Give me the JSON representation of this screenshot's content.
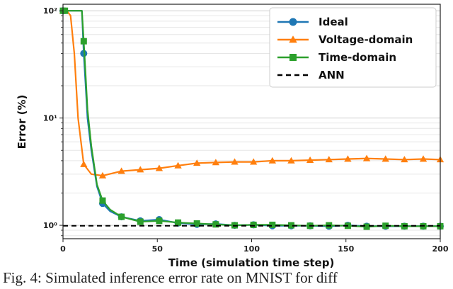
{
  "chart_data": {
    "type": "line",
    "xlabel": "Time (simulation time step)",
    "ylabel": "Error (%)",
    "xlim": [
      0,
      200
    ],
    "ylim": [
      0.75,
      115
    ],
    "yscale": "log",
    "x_ticks": [
      0,
      50,
      100,
      150,
      200
    ],
    "y_ticks": [
      {
        "value": 1,
        "label": "10⁰"
      },
      {
        "value": 10,
        "label": "10¹"
      },
      {
        "value": 100,
        "label": "10²"
      }
    ],
    "grid": "horizontal",
    "legend_position": "top-right",
    "series": [
      {
        "name": "Ideal",
        "color": "#1f77b4",
        "marker": "circle",
        "x": [
          0,
          10,
          11,
          12,
          13,
          15,
          18,
          21,
          25,
          31,
          41,
          51,
          61,
          71,
          81,
          91,
          101,
          111,
          121,
          131,
          141,
          151,
          161,
          171,
          181,
          191,
          200
        ],
        "y": [
          100,
          100,
          40,
          20,
          10,
          5,
          2.3,
          1.6,
          1.35,
          1.2,
          1.1,
          1.13,
          1.05,
          1.02,
          1.03,
          1.0,
          1.01,
          0.99,
          0.99,
          0.99,
          0.98,
          1.0,
          0.98,
          0.98,
          0.98,
          0.98,
          0.98
        ]
      },
      {
        "name": "Voltage-domain",
        "color": "#ff7f0e",
        "marker": "triangle",
        "x": [
          0,
          2,
          4,
          6,
          8,
          11,
          15,
          21,
          31,
          41,
          51,
          61,
          71,
          81,
          91,
          101,
          111,
          121,
          131,
          141,
          151,
          161,
          171,
          181,
          191,
          200
        ],
        "y": [
          100,
          100,
          90,
          40,
          10,
          3.7,
          3.0,
          2.9,
          3.2,
          3.3,
          3.4,
          3.6,
          3.8,
          3.85,
          3.9,
          3.9,
          4.0,
          4.0,
          4.05,
          4.1,
          4.15,
          4.2,
          4.15,
          4.1,
          4.15,
          4.1
        ]
      },
      {
        "name": "Time-domain",
        "color": "#2ca02c",
        "marker": "square",
        "x": [
          0,
          1,
          10,
          11,
          12,
          13,
          15,
          18,
          21,
          25,
          31,
          41,
          51,
          61,
          71,
          81,
          91,
          101,
          111,
          121,
          131,
          141,
          151,
          161,
          171,
          181,
          191,
          200
        ],
        "y": [
          100,
          100,
          100,
          52,
          25,
          12,
          5.5,
          2.4,
          1.7,
          1.4,
          1.2,
          1.08,
          1.1,
          1.06,
          1.04,
          1.02,
          1.0,
          1.01,
          1.01,
          1.0,
          0.99,
          1.0,
          0.99,
          0.97,
          0.99,
          0.98,
          0.98,
          0.98
        ]
      },
      {
        "name": "ANN",
        "color": "#000000",
        "marker": "none",
        "dashed": true,
        "x": [
          0,
          200
        ],
        "y": [
          0.99,
          0.99
        ]
      }
    ]
  },
  "caption": "Fig. 4: Simulated inference error rate on MNIST for diff"
}
